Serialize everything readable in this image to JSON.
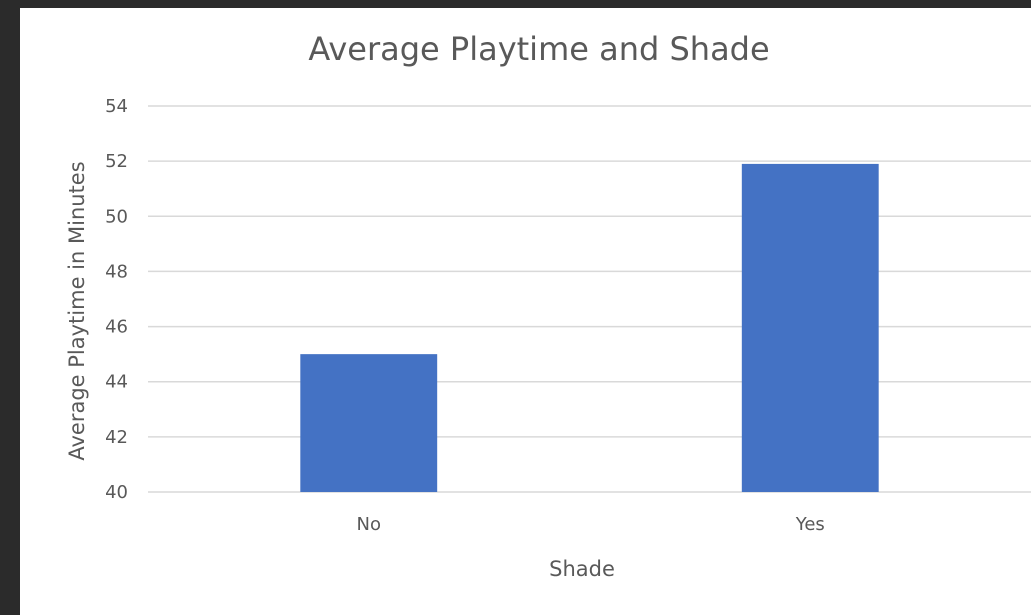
{
  "chart_data": {
    "type": "bar",
    "title": "Average Playtime and Shade",
    "xlabel": "Shade",
    "ylabel": "Average Playtime in Minutes",
    "categories": [
      "No",
      "Yes"
    ],
    "values": [
      45,
      51.9
    ],
    "ylim": [
      40,
      54
    ],
    "yticks": [
      40,
      42,
      44,
      46,
      48,
      50,
      52,
      54
    ],
    "grid": true,
    "legend": "none",
    "colors": {
      "bar": "#4472C4",
      "gridline": "#D9D9D9",
      "text": "#595959",
      "frame": "#2B2B2B",
      "background": "#FFFFFF"
    }
  }
}
